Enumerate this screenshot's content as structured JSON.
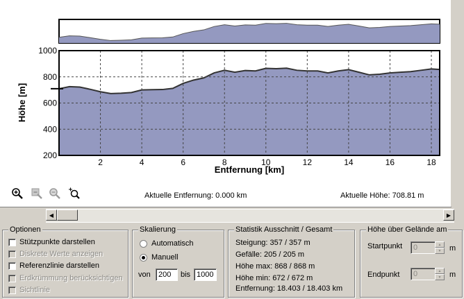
{
  "toolbar": {
    "zoom_in_icon": "zoom-in-icon",
    "zoom_out_icon": "zoom-out-icon",
    "zoom_fit_icon": "zoom-fit-icon",
    "zoom_window_icon": "zoom-window-icon"
  },
  "readouts": {
    "distance": "Aktuelle Entfernung: 0.000 km",
    "height": "Aktuelle Höhe: 708.81 m"
  },
  "options": {
    "title": "Optionen",
    "items": [
      {
        "label": "Stützpunkte darstellen",
        "checked": false,
        "enabled": true
      },
      {
        "label": "Diskrete Werte anzeigen",
        "checked": false,
        "enabled": false
      },
      {
        "label": "Referenzlinie darstellen",
        "checked": false,
        "enabled": true
      },
      {
        "label": "Erdkrümmung berücksichtigen",
        "checked": false,
        "enabled": false
      },
      {
        "label": "Sichtlinie",
        "checked": false,
        "enabled": false
      }
    ]
  },
  "scaling": {
    "title": "Skalierung",
    "auto_label": "Automatisch",
    "manual_label": "Manuell",
    "selected": "Manuell",
    "from_label": "von",
    "from_value": "200",
    "to_label": "bis",
    "to_value": "1000"
  },
  "stats": {
    "title": "Statistik  Ausschnitt / Gesamt",
    "lines": [
      "Steigung: 357 / 357 m",
      "Gefälle: 205 / 205 m",
      "Höhe max: 868 / 868 m",
      "Höhe min: 672 / 672 m",
      "Entfernung: 18.403 / 18.403 km"
    ]
  },
  "terrain": {
    "title": "Höhe über Gelände am",
    "start_label": "Startpunkt",
    "start_value": "0",
    "start_unit": "m",
    "end_label": "Endpunkt",
    "end_value": "0",
    "end_unit": "m"
  },
  "chart_data": {
    "type": "area",
    "xlabel": "Entfernung [km]",
    "ylabel": "Höhe [m]",
    "xlim": [
      0,
      18.403
    ],
    "ylim": [
      200,
      1000
    ],
    "xticks": [
      2,
      4,
      6,
      8,
      10,
      12,
      14,
      16,
      18
    ],
    "yticks": [
      200,
      400,
      600,
      800,
      1000
    ],
    "grid": true,
    "colors": {
      "fill": "#9499c0",
      "line": "#333333"
    },
    "series": [
      {
        "x": [
          0,
          0.5,
          1,
          1.5,
          2,
          2.5,
          3,
          3.5,
          4,
          4.5,
          5,
          5.5,
          6,
          6.5,
          7,
          7.5,
          8,
          8.5,
          9,
          9.5,
          10,
          10.5,
          11,
          11.5,
          12,
          12.5,
          13,
          13.5,
          14,
          14.5,
          15,
          15.5,
          16,
          16.5,
          17,
          17.5,
          18,
          18.403
        ],
        "y": [
          709,
          725,
          722,
          705,
          686,
          672,
          675,
          680,
          700,
          702,
          703,
          712,
          750,
          775,
          792,
          830,
          850,
          835,
          848,
          845,
          865,
          862,
          866,
          850,
          845,
          845,
          830,
          845,
          855,
          835,
          815,
          820,
          830,
          835,
          840,
          850,
          860,
          856
        ]
      }
    ],
    "reference_height": 709
  }
}
